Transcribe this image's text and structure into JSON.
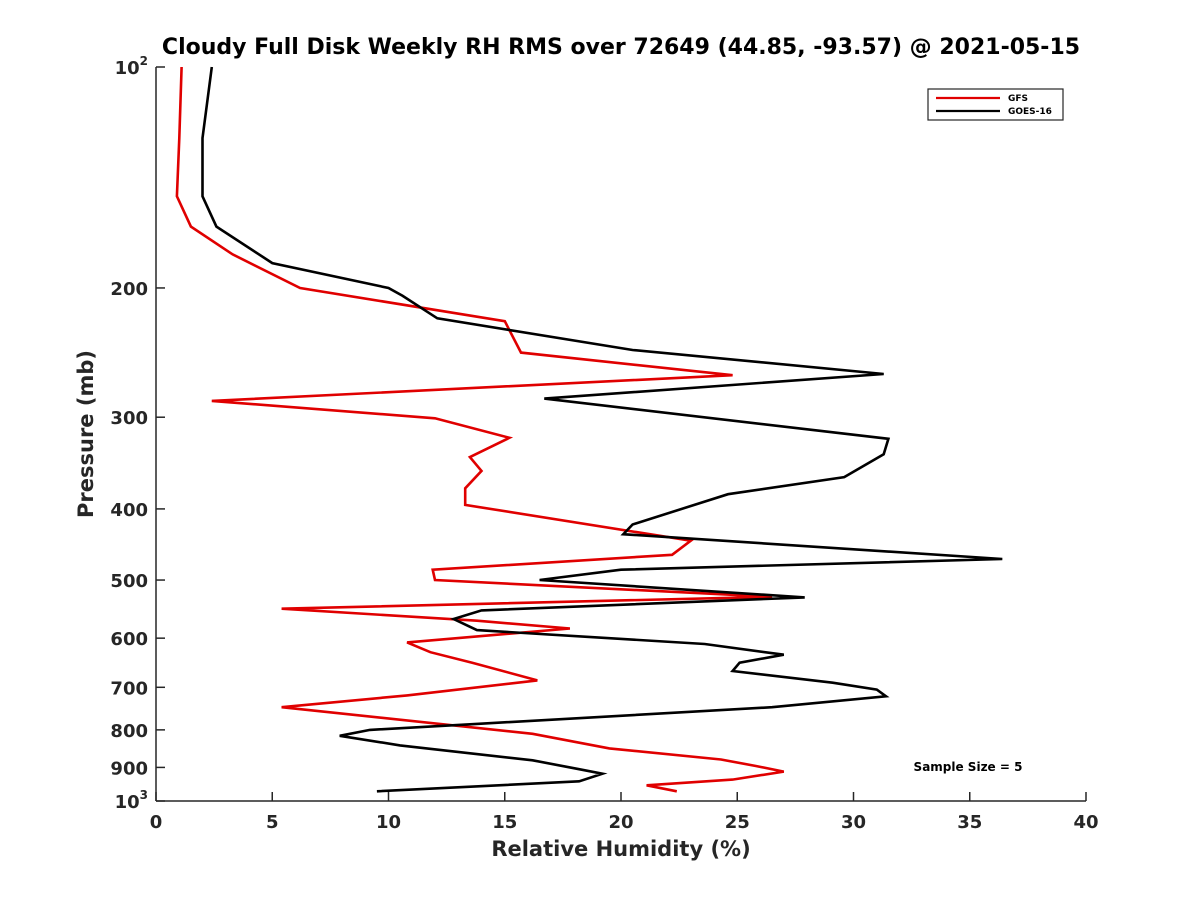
{
  "chart_data": {
    "type": "line",
    "title": "Cloudy Full Disk Weekly RH RMS over 72649 (44.85, -93.57) @ 2021-05-15",
    "xlabel": "Relative Humidity (%)",
    "ylabel": "Pressure (mb)",
    "xlim": [
      0,
      40
    ],
    "ylim": [
      100,
      1000
    ],
    "yscale": "log",
    "y_reversed": true,
    "x_ticks": [
      0,
      5,
      10,
      15,
      20,
      25,
      30,
      35,
      40
    ],
    "x_tick_labels": [
      "0",
      "5",
      "10",
      "15",
      "20",
      "25",
      "30",
      "35",
      "40"
    ],
    "y_ticks": [
      100,
      200,
      300,
      400,
      500,
      600,
      700,
      800,
      900,
      1000
    ],
    "y_tick_labels": [
      {
        "base": "10",
        "exp": "2"
      },
      {
        "base": "200",
        "exp": ""
      },
      {
        "base": "300",
        "exp": ""
      },
      {
        "base": "400",
        "exp": ""
      },
      {
        "base": "500",
        "exp": ""
      },
      {
        "base": "600",
        "exp": ""
      },
      {
        "base": "700",
        "exp": ""
      },
      {
        "base": "800",
        "exp": ""
      },
      {
        "base": "900",
        "exp": ""
      },
      {
        "base": "10",
        "exp": "3"
      }
    ],
    "grid": false,
    "legend_position": "top-right",
    "annotation": "Sample Size = 5",
    "series": [
      {
        "name": "GFS",
        "color": "#e00000",
        "points": [
          [
            1.1,
            100
          ],
          [
            1.0,
            125
          ],
          [
            0.9,
            150
          ],
          [
            1.5,
            165
          ],
          [
            3.3,
            180
          ],
          [
            6.2,
            200
          ],
          [
            15.0,
            222
          ],
          [
            15.7,
            245
          ],
          [
            24.8,
            263
          ],
          [
            2.4,
            285
          ],
          [
            12.0,
            301
          ],
          [
            15.2,
            320
          ],
          [
            13.5,
            340
          ],
          [
            14.0,
            355
          ],
          [
            13.3,
            375
          ],
          [
            13.3,
            395
          ],
          [
            23.0,
            442
          ],
          [
            22.2,
            462
          ],
          [
            11.9,
            484
          ],
          [
            12.0,
            500
          ],
          [
            26.5,
            527
          ],
          [
            5.4,
            547
          ],
          [
            13.8,
            568
          ],
          [
            17.8,
            582
          ],
          [
            10.8,
            608
          ],
          [
            11.8,
            627
          ],
          [
            13.6,
            648
          ],
          [
            16.4,
            685
          ],
          [
            10.8,
            718
          ],
          [
            5.4,
            745
          ],
          [
            16.2,
            810
          ],
          [
            19.5,
            848
          ],
          [
            24.3,
            878
          ],
          [
            25.8,
            896
          ],
          [
            27.0,
            912
          ],
          [
            24.8,
            935
          ],
          [
            21.1,
            952
          ],
          [
            22.4,
            970
          ]
        ]
      },
      {
        "name": "GOES-16",
        "color": "#000000",
        "points": [
          [
            2.4,
            100
          ],
          [
            2.0,
            125
          ],
          [
            2.0,
            150
          ],
          [
            2.6,
            165
          ],
          [
            5.0,
            185
          ],
          [
            10.0,
            200
          ],
          [
            10.6,
            205
          ],
          [
            12.1,
            220
          ],
          [
            20.5,
            243
          ],
          [
            31.3,
            262
          ],
          [
            16.7,
            283
          ],
          [
            31.5,
            321
          ],
          [
            31.3,
            337
          ],
          [
            29.6,
            362
          ],
          [
            24.6,
            382
          ],
          [
            20.5,
            420
          ],
          [
            20.1,
            433
          ],
          [
            36.4,
            468
          ],
          [
            20.0,
            484
          ],
          [
            16.5,
            500
          ],
          [
            27.9,
            528
          ],
          [
            14.0,
            550
          ],
          [
            12.8,
            565
          ],
          [
            13.8,
            585
          ],
          [
            23.6,
            611
          ],
          [
            27.0,
            632
          ],
          [
            25.1,
            648
          ],
          [
            24.8,
            665
          ],
          [
            29.1,
            690
          ],
          [
            31.0,
            705
          ],
          [
            31.4,
            720
          ],
          [
            26.5,
            745
          ],
          [
            13.6,
            786
          ],
          [
            9.2,
            800
          ],
          [
            7.9,
            815
          ],
          [
            10.5,
            840
          ],
          [
            16.2,
            880
          ],
          [
            18.2,
            905
          ],
          [
            19.2,
            918
          ],
          [
            18.2,
            940
          ],
          [
            9.5,
            970
          ]
        ]
      }
    ]
  }
}
